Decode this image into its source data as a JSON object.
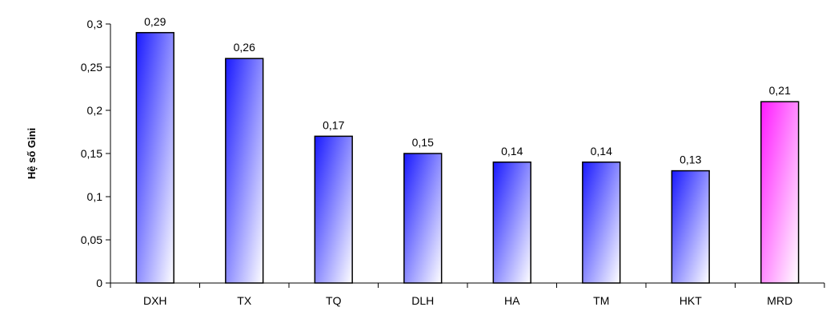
{
  "chart_data": {
    "type": "bar",
    "categories": [
      "DXH",
      "TX",
      "TQ",
      "DLH",
      "HA",
      "TM",
      "HKT",
      "MRD"
    ],
    "values": [
      0.29,
      0.26,
      0.17,
      0.15,
      0.14,
      0.14,
      0.13,
      0.21
    ],
    "data_labels": [
      "0,29",
      "0,26",
      "0,17",
      "0,15",
      "0,14",
      "0,14",
      "0,13",
      "0,21"
    ],
    "title": "",
    "xlabel": "",
    "ylabel": "Hệ số Gini",
    "ylim": [
      0,
      0.3
    ],
    "yticks": [
      0,
      0.05,
      0.1,
      0.15,
      0.2,
      0.25,
      0.3
    ],
    "ytick_labels": [
      "0",
      "0,05",
      "0,1",
      "0,15",
      "0,2",
      "0,25",
      "0,3"
    ],
    "grid": false,
    "colors": {
      "bar_gradient_start": "#1a1aff",
      "bar_gradient_end": "#ffffff",
      "highlight_gradient_start": "#ff1aff",
      "highlight_gradient_end": "#ffffff",
      "highlight_category": "MRD"
    }
  }
}
